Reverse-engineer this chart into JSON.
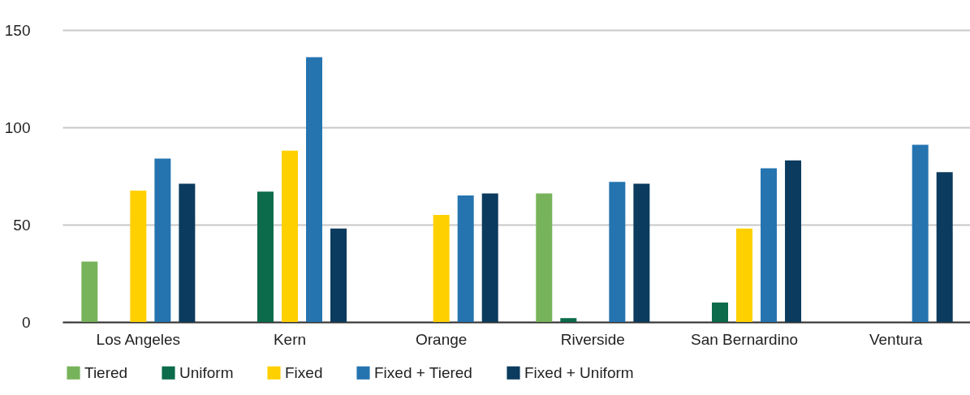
{
  "chart_data": {
    "type": "bar",
    "categories": [
      "Los Angeles",
      "Kern",
      "Orange",
      "Riverside",
      "San Bernardino",
      "Ventura"
    ],
    "series": [
      {
        "name": "Tiered",
        "color": "#77b35a",
        "values": [
          31,
          null,
          null,
          66,
          null,
          null
        ]
      },
      {
        "name": "Uniform",
        "color": "#0c6b4b",
        "values": [
          null,
          67,
          null,
          2,
          10,
          null
        ]
      },
      {
        "name": "Fixed",
        "color": "#ffd000",
        "values": [
          67.5,
          88,
          55,
          null,
          48,
          null
        ]
      },
      {
        "name": "Fixed + Tiered",
        "color": "#2574b0",
        "values": [
          84,
          136,
          65,
          72,
          79,
          91
        ]
      },
      {
        "name": "Fixed + Uniform",
        "color": "#0b3b5e",
        "values": [
          71,
          48,
          66,
          71,
          83,
          77
        ]
      }
    ],
    "ylim": [
      0,
      150
    ],
    "yticks": [
      0,
      50,
      100,
      150
    ],
    "grid": "y",
    "legend": "bottom"
  }
}
